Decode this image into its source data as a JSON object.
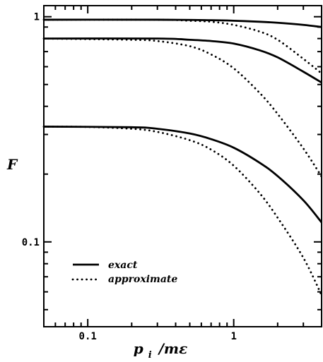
{
  "chart_data": {
    "type": "line",
    "title": "",
    "xlabel": "p_i /mε",
    "xlabel_main": "p",
    "xlabel_sub": "i",
    "xlabel_rest": "/mε",
    "ylabel": "F",
    "xscale": "log",
    "yscale": "log",
    "xlim": [
      0.05,
      4.0
    ],
    "ylim": [
      0.042,
      1.12
    ],
    "x_ticks": [
      {
        "value": 0.1,
        "label": "0.1"
      },
      {
        "value": 1,
        "label": "1"
      }
    ],
    "y_ticks": [
      {
        "value": 0.1,
        "label": "0.1"
      },
      {
        "value": 1,
        "label": "1"
      }
    ],
    "grid": false,
    "legend": {
      "position": "bottom-left"
    },
    "series": [
      {
        "name": "exact",
        "style": "solid",
        "curve": "top",
        "x": [
          0.05,
          0.3,
          0.7,
          1.0,
          1.5,
          2.0,
          3.0,
          4.0
        ],
        "y": [
          0.97,
          0.97,
          0.965,
          0.96,
          0.95,
          0.94,
          0.92,
          0.9
        ]
      },
      {
        "name": "approximate",
        "style": "dotted",
        "curve": "top",
        "x": [
          0.05,
          0.3,
          0.5,
          0.7,
          1.0,
          1.5,
          2.0,
          3.0,
          4.0
        ],
        "y": [
          0.97,
          0.97,
          0.96,
          0.95,
          0.92,
          0.86,
          0.79,
          0.65,
          0.56
        ]
      },
      {
        "name": "exact",
        "style": "solid",
        "curve": "middle",
        "x": [
          0.05,
          0.3,
          0.5,
          0.7,
          1.0,
          1.5,
          2.0,
          3.0,
          4.0
        ],
        "y": [
          0.8,
          0.8,
          0.79,
          0.78,
          0.76,
          0.71,
          0.66,
          0.57,
          0.51
        ]
      },
      {
        "name": "approximate",
        "style": "dotted",
        "curve": "middle",
        "x": [
          0.05,
          0.2,
          0.3,
          0.5,
          0.7,
          1.0,
          1.5,
          2.0,
          3.0,
          4.0
        ],
        "y": [
          0.8,
          0.79,
          0.78,
          0.74,
          0.68,
          0.59,
          0.46,
          0.37,
          0.26,
          0.195
        ]
      },
      {
        "name": "exact",
        "style": "solid",
        "curve": "bottom",
        "x": [
          0.05,
          0.2,
          0.3,
          0.5,
          0.7,
          1.0,
          1.5,
          2.0,
          3.0,
          4.0
        ],
        "y": [
          0.325,
          0.323,
          0.318,
          0.303,
          0.286,
          0.262,
          0.225,
          0.196,
          0.153,
          0.122
        ]
      },
      {
        "name": "approximate",
        "style": "dotted",
        "curve": "bottom",
        "x": [
          0.05,
          0.1,
          0.2,
          0.3,
          0.5,
          0.7,
          1.0,
          1.5,
          2.0,
          3.0,
          4.0
        ],
        "y": [
          0.325,
          0.324,
          0.318,
          0.308,
          0.283,
          0.257,
          0.218,
          0.165,
          0.128,
          0.085,
          0.058
        ]
      }
    ]
  }
}
